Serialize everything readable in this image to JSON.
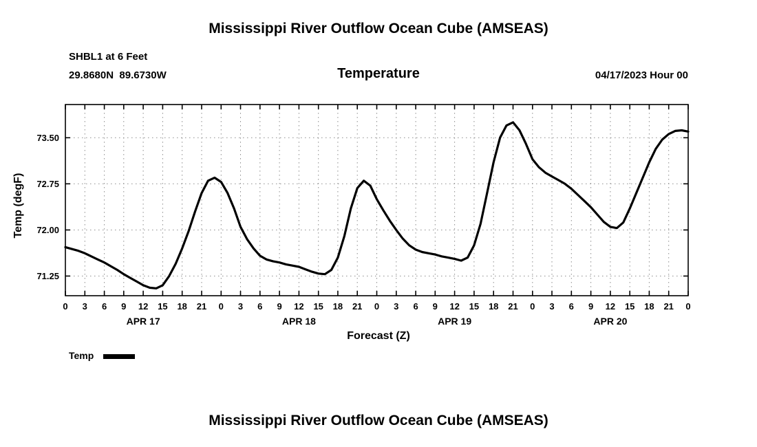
{
  "header": {
    "title": "Mississippi River Outflow Ocean Cube (AMSEAS)",
    "station": "SHBL1 at 6 Feet",
    "coords": "29.8680N  89.6730W",
    "plot_title": "Temperature",
    "datetime": "04/17/2023 Hour 00"
  },
  "chart_data": {
    "type": "line",
    "title": "Temperature",
    "xlabel": "Forecast (Z)",
    "ylabel": "Temp (degF)",
    "xlim": [
      0,
      96
    ],
    "ylim": [
      70.93,
      74.04
    ],
    "x_step": 1,
    "xtick_step": 3,
    "xtick_labels": [
      "0",
      "3",
      "6",
      "9",
      "12",
      "15",
      "18",
      "21",
      "0",
      "3",
      "6",
      "9",
      "12",
      "15",
      "18",
      "21",
      "0",
      "3",
      "6",
      "9",
      "12",
      "15",
      "18",
      "21",
      "0",
      "3",
      "6",
      "9",
      "12",
      "15",
      "18",
      "21",
      "0"
    ],
    "yticks": [
      71.25,
      72.0,
      72.75,
      73.5
    ],
    "day_labels": [
      {
        "label": "APR 17",
        "hour": 12
      },
      {
        "label": "APR 18",
        "hour": 36
      },
      {
        "label": "APR 19",
        "hour": 60
      },
      {
        "label": "APR 20",
        "hour": 84
      }
    ],
    "grid": true,
    "legend_position": "bottom-left",
    "series": [
      {
        "name": "Temp",
        "color": "#000000",
        "y": [
          71.72,
          71.69,
          71.66,
          71.62,
          71.57,
          71.52,
          71.47,
          71.41,
          71.35,
          71.28,
          71.22,
          71.16,
          71.1,
          71.06,
          71.05,
          71.1,
          71.25,
          71.45,
          71.7,
          71.98,
          72.3,
          72.6,
          72.8,
          72.85,
          72.78,
          72.6,
          72.35,
          72.05,
          71.85,
          71.7,
          71.58,
          71.52,
          71.49,
          71.47,
          71.44,
          71.42,
          71.4,
          71.36,
          71.32,
          71.29,
          71.28,
          71.35,
          71.55,
          71.9,
          72.35,
          72.68,
          72.8,
          72.72,
          72.5,
          72.32,
          72.15,
          72.0,
          71.86,
          71.75,
          71.68,
          71.64,
          71.62,
          71.6,
          71.57,
          71.55,
          71.53,
          71.5,
          71.55,
          71.75,
          72.1,
          72.6,
          73.1,
          73.5,
          73.7,
          73.75,
          73.62,
          73.4,
          73.15,
          73.02,
          72.93,
          72.87,
          72.81,
          72.75,
          72.67,
          72.57,
          72.47,
          72.37,
          72.25,
          72.13,
          72.05,
          72.03,
          72.12,
          72.35,
          72.6,
          72.85,
          73.1,
          73.32,
          73.47,
          73.56,
          73.61,
          73.62,
          73.6
        ]
      }
    ]
  },
  "legend": {
    "label": "Temp"
  },
  "footer_title": "Mississippi River Outflow Ocean Cube (AMSEAS)"
}
